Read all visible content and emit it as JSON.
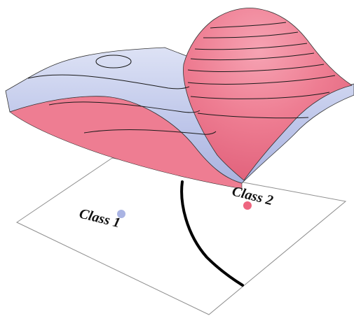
{
  "labels": {
    "class1": "Class 1",
    "class2": "Class 2"
  },
  "colors": {
    "class1_surface": "#b7c0e6",
    "class1_surface_light": "#d7dcf3",
    "class1_dot": "#aab4e3",
    "class2_surface": "#ee7e92",
    "class2_surface_light": "#f7aab8",
    "class2_dot": "#ee6680",
    "contour": "#1a1a1a",
    "boundary": "#000000",
    "plane_border": "#8e8e8e"
  }
}
